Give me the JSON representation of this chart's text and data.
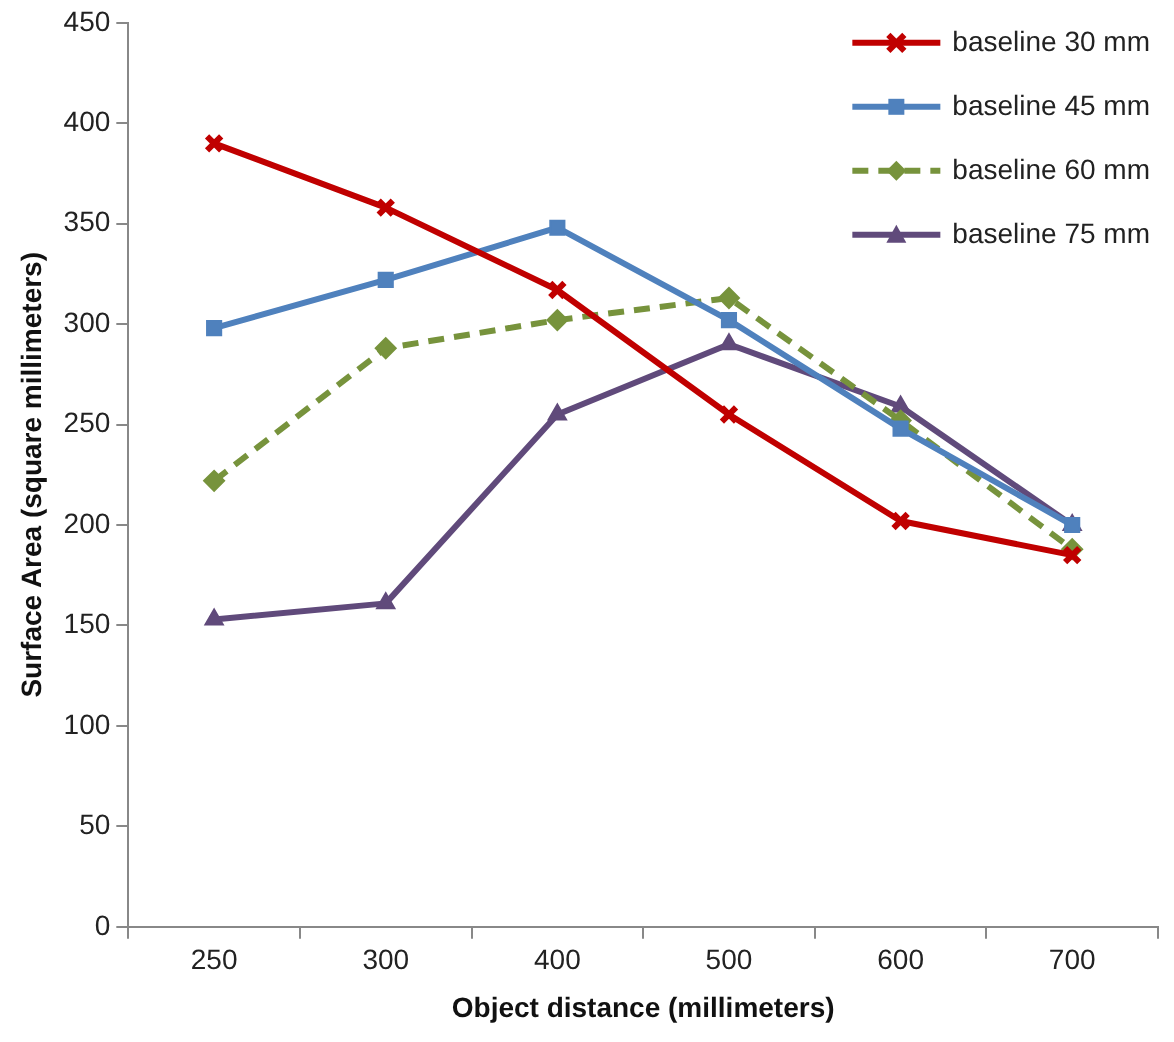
{
  "chart_data": {
    "type": "line",
    "xlabel": "Object distance (millimeters)",
    "ylabel": "Surface Area (square millimeters)",
    "categories": [
      "250",
      "300",
      "400",
      "500",
      "600",
      "700"
    ],
    "ylim": [
      0,
      450
    ],
    "yticks": [
      0,
      50,
      100,
      150,
      200,
      250,
      300,
      350,
      400,
      450
    ],
    "grid": false,
    "legend": "top right",
    "series": [
      {
        "name": "baseline 30 mm",
        "color": "#c00000",
        "marker": "cross",
        "line_style": "solid",
        "values": [
          390,
          358,
          317,
          255,
          202,
          185
        ]
      },
      {
        "name": "baseline 45 mm",
        "color": "#4f81bd",
        "marker": "square",
        "line_style": "solid",
        "values": [
          298,
          322,
          348,
          302,
          248,
          200
        ]
      },
      {
        "name": "baseline 60 mm",
        "color": "#77933c",
        "marker": "diamond",
        "line_style": "dashed",
        "values": [
          222,
          288,
          302,
          313,
          252,
          188
        ]
      },
      {
        "name": "baseline 75 mm",
        "color": "#604a7b",
        "marker": "triangle",
        "line_style": "solid",
        "values": [
          153,
          161,
          255,
          290,
          259,
          200
        ]
      }
    ]
  }
}
